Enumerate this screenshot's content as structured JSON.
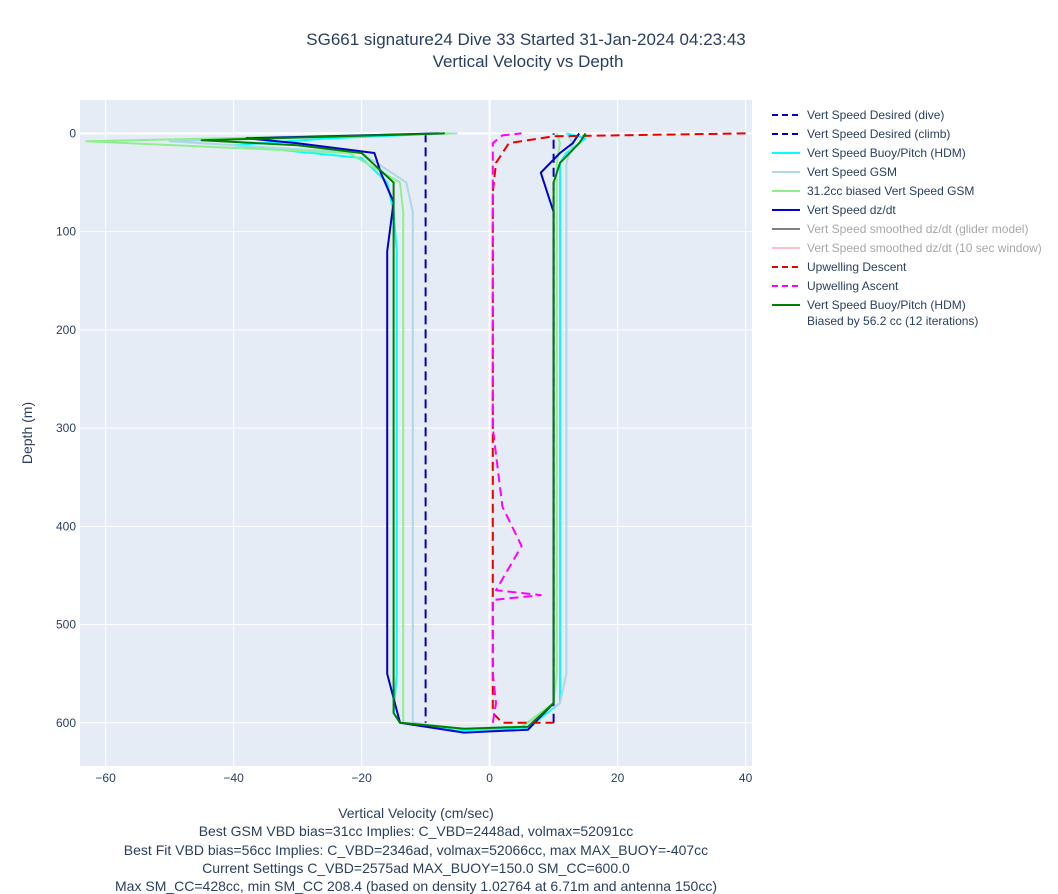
{
  "chart_data": {
    "type": "line",
    "title": "SG661 signature24 Dive 33 Started 31-Jan-2024 04:23:43",
    "subtitle": "Vertical Velocity vs Depth",
    "xlabel": "Vertical Velocity (cm/sec)",
    "ylabel": "Depth (m)",
    "xlim": [
      -64,
      41
    ],
    "ylim": [
      644,
      -34
    ],
    "y_reversed": true,
    "grid": true,
    "legend_position": "right",
    "x_ticks": [
      "−60",
      "−40",
      "−20",
      "0",
      "20",
      "40"
    ],
    "x_tick_values": [
      -60,
      -40,
      -20,
      0,
      20,
      40
    ],
    "y_ticks": [
      "0",
      "100",
      "200",
      "300",
      "400",
      "500",
      "600"
    ],
    "y_tick_values": [
      0,
      100,
      200,
      300,
      400,
      500,
      600
    ],
    "notes": [
      "Best GSM VBD bias=31cc Implies: C_VBD=2448ad, volmax=52091cc",
      "Best Fit VBD bias=56cc Implies: C_VBD=2346ad, volmax=52066cc, max MAX_BUOY=-407cc",
      "Current Settings C_VBD=2575ad MAX_BUOY=150.0 SM_CC=600.0",
      "Max SM_CC=428cc, min SM_CC 208.4 (based on density 1.02764 at 6.71m and antenna 150cc)"
    ],
    "series": [
      {
        "name": "Vert Speed Desired (dive)",
        "color": "#0000bb",
        "dash": true,
        "visible": true,
        "x": [
          -10,
          -10
        ],
        "y": [
          0,
          600
        ]
      },
      {
        "name": "Vert Speed Desired (climb)",
        "color": "#0000bb",
        "dash": true,
        "visible": true,
        "x": [
          10,
          10
        ],
        "y": [
          600,
          0
        ]
      },
      {
        "name": "Vert Speed Buoy/Pitch (HDM)",
        "color": "#00ffff",
        "dash": false,
        "visible": true,
        "x": [
          -7,
          -25,
          -40,
          -20,
          -16,
          -15,
          -14.5,
          -14.5,
          -14.5,
          -14.5,
          -14.5,
          -14.5,
          -14.5,
          -15,
          -14,
          -5,
          6,
          11,
          11,
          11,
          11,
          11,
          11,
          11,
          11,
          11,
          11,
          11,
          12,
          15,
          12
        ],
        "y": [
          0,
          5,
          12,
          25,
          50,
          80,
          120,
          200,
          300,
          400,
          450,
          500,
          550,
          590,
          600,
          608,
          605,
          580,
          550,
          500,
          450,
          400,
          300,
          200,
          120,
          80,
          50,
          30,
          20,
          5,
          0
        ]
      },
      {
        "name": "Vert Speed GSM",
        "color": "#add8e6",
        "dash": false,
        "visible": true,
        "x": [
          -5,
          -30,
          -50,
          -20,
          -13,
          -12,
          -12,
          -12,
          -12,
          -12,
          -12,
          -12,
          -12,
          -12,
          -12,
          -4,
          5,
          11,
          12,
          12,
          12,
          12,
          12,
          12,
          12,
          12,
          12,
          13,
          12
        ],
        "y": [
          0,
          4,
          8,
          20,
          50,
          80,
          120,
          200,
          300,
          400,
          450,
          500,
          550,
          590,
          600,
          606,
          604,
          580,
          550,
          500,
          400,
          300,
          200,
          120,
          80,
          50,
          30,
          10,
          0
        ]
      },
      {
        "name": "31.2cc biased Vert Speed GSM",
        "color": "#90ee90",
        "dash": false,
        "visible": true,
        "x": [
          -6,
          -35,
          -63,
          -22,
          -14,
          -13.5,
          -13.5,
          -13.5,
          -13.5,
          -13.5,
          -13.5,
          -13.5,
          -13.5,
          -13.5,
          -13.5,
          -4,
          5,
          10,
          10.5,
          10.5,
          10.5,
          10.5,
          10.5,
          10.5,
          10.5,
          10.5,
          10.5,
          11,
          10.5
        ],
        "y": [
          0,
          4,
          8,
          20,
          50,
          80,
          120,
          200,
          300,
          400,
          450,
          500,
          550,
          590,
          600,
          606,
          604,
          580,
          550,
          500,
          400,
          300,
          200,
          120,
          80,
          50,
          30,
          10,
          0
        ]
      },
      {
        "name": "Vert Speed dz/dt",
        "color": "#0000cc",
        "dash": false,
        "visible": true,
        "x": [
          -8,
          -38,
          -30,
          -18,
          -17,
          -15,
          -16,
          -16,
          -16,
          -16,
          -16,
          -16,
          -16,
          -14,
          -4,
          6,
          10,
          10,
          10,
          10,
          10,
          10,
          10,
          10,
          10,
          8,
          11,
          13,
          14
        ],
        "y": [
          0,
          5,
          10,
          20,
          40,
          70,
          120,
          200,
          300,
          400,
          450,
          500,
          550,
          600,
          610,
          607,
          580,
          550,
          500,
          450,
          400,
          300,
          200,
          120,
          80,
          40,
          20,
          10,
          0
        ]
      },
      {
        "name": "Vert Speed smoothed dz/dt (glider model)",
        "color": "#808080",
        "dash": false,
        "visible": false,
        "x": [],
        "y": []
      },
      {
        "name": "Vert Speed smoothed dz/dt (10 sec window)",
        "color": "#ffc0cb",
        "dash": false,
        "visible": false,
        "x": [],
        "y": []
      },
      {
        "name": "Upwelling Descent",
        "color": "#ee0000",
        "dash": true,
        "visible": true,
        "x": [
          40,
          10,
          3,
          1,
          0.5,
          0.5,
          0.5,
          0.5,
          0.5,
          0.5,
          0.5,
          0.5,
          2,
          10
        ],
        "y": [
          0,
          3,
          10,
          30,
          60,
          100,
          200,
          300,
          400,
          500,
          550,
          590,
          600,
          600
        ]
      },
      {
        "name": "Upwelling Ascent",
        "color": "#ff00ff",
        "dash": true,
        "visible": true,
        "x": [
          0.5,
          1,
          0.5,
          0.5,
          0.5,
          0.5,
          0.5,
          8,
          1,
          5,
          2,
          0.5,
          0.5,
          0.5,
          0.5,
          0.5,
          0.5,
          2,
          5
        ],
        "y": [
          600,
          580,
          550,
          530,
          510,
          490,
          475,
          470,
          465,
          420,
          380,
          300,
          200,
          100,
          50,
          20,
          10,
          2,
          0
        ]
      },
      {
        "name": "Vert Speed Buoy/Pitch (HDM)\nBiased by 56.2 cc (12 iterations)",
        "color": "#008000",
        "dash": false,
        "visible": true,
        "x": [
          -7,
          -45,
          -30,
          -20,
          -15,
          -15,
          -15,
          -15,
          -15,
          -15,
          -15,
          -15,
          -15,
          -15,
          -14,
          -4,
          6,
          10,
          10,
          10,
          10,
          10,
          10,
          10,
          10,
          10,
          10,
          11,
          14,
          15
        ],
        "y": [
          0,
          7,
          12,
          20,
          50,
          80,
          120,
          200,
          300,
          400,
          450,
          500,
          550,
          590,
          600,
          606,
          604,
          580,
          550,
          500,
          450,
          400,
          300,
          200,
          120,
          80,
          50,
          30,
          10,
          0
        ]
      }
    ]
  }
}
